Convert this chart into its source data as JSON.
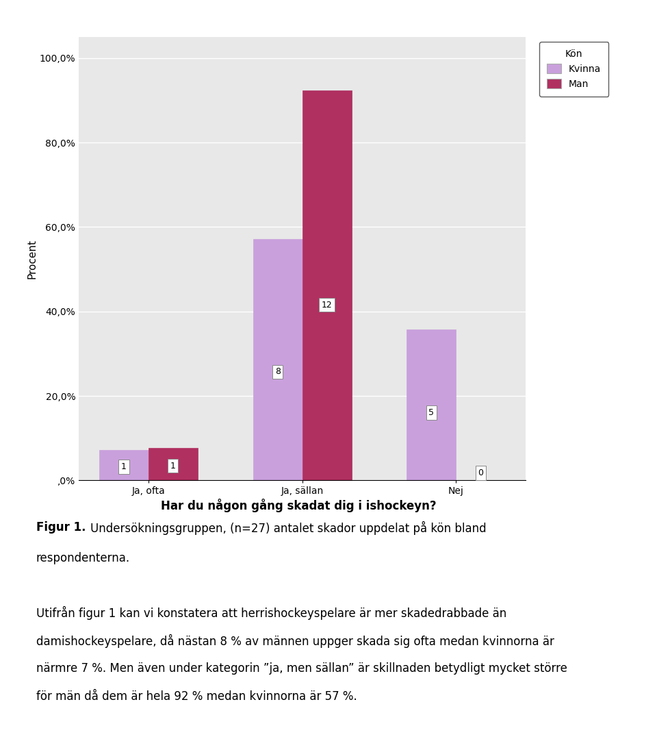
{
  "categories": [
    "Ja, ofta",
    "Ja, sällan",
    "Nej"
  ],
  "kvinna_pct": [
    7.142857,
    57.142857,
    35.714286
  ],
  "man_pct": [
    7.692308,
    92.307692,
    0.0
  ],
  "kvinna_counts": [
    1,
    8,
    5
  ],
  "man_counts": [
    1,
    12,
    0
  ],
  "kvinna_color": "#C9A0DC",
  "man_color": "#B03060",
  "bar_width": 0.32,
  "ylim": [
    0,
    105
  ],
  "yticks": [
    0,
    20,
    40,
    60,
    80,
    100
  ],
  "ytick_labels": [
    ",0%",
    "20,0%",
    "40,0%",
    "60,0%",
    "80,0%",
    "100,0%"
  ],
  "ylabel": "Procent",
  "xlabel": "Har du någon gång skadat dig i ishockeyn?",
  "legend_title": "Kön",
  "legend_kvinna": "Kvinna",
  "legend_man": "Man",
  "plot_bg_color": "#E8E8E8",
  "caption_bold": "Figur 1.",
  "caption_line1": "Undersökningsgruppen, (n=27) antalet skador uppdelat på kön bland",
  "caption_line2": "respondenterna.",
  "body_line1": "Utifrån figur 1 kan vi konstatera att herrishockeyspelare är mer skadedrabbade än",
  "body_line2": "damishockeyspelare, då nästan 8 % av männen uppger skada sig ofta medan kvinnorna är",
  "body_line3": "närmre 7 %. Men även under kategorin ”ja, men sällan” är skillnaden betydligt mycket större",
  "body_line4": "för män då dem är hela 92 % medan kvinnorna är 57 %.",
  "label_fontsize": 9,
  "axis_fontsize": 10,
  "legend_fontsize": 10,
  "text_fontsize": 12
}
